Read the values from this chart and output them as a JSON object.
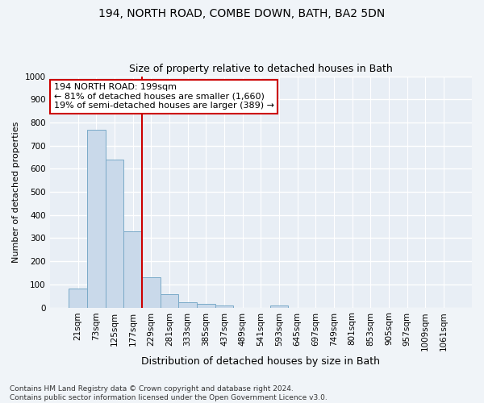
{
  "title1": "194, NORTH ROAD, COMBE DOWN, BATH, BA2 5DN",
  "title2": "Size of property relative to detached houses in Bath",
  "xlabel": "Distribution of detached houses by size in Bath",
  "ylabel": "Number of detached properties",
  "categories": [
    "21sqm",
    "73sqm",
    "125sqm",
    "177sqm",
    "229sqm",
    "281sqm",
    "333sqm",
    "385sqm",
    "437sqm",
    "489sqm",
    "541sqm",
    "593sqm",
    "645sqm",
    "697sqm",
    "749sqm",
    "801sqm",
    "853sqm",
    "905sqm",
    "957sqm",
    "1009sqm",
    "1061sqm"
  ],
  "values": [
    83,
    770,
    640,
    330,
    132,
    58,
    22,
    17,
    10,
    0,
    0,
    8,
    0,
    0,
    0,
    0,
    0,
    0,
    0,
    0,
    0
  ],
  "bar_color": "#c9d9ea",
  "bar_edge_color": "#7aaac8",
  "vline_x": 3.5,
  "vline_color": "#cc0000",
  "annotation_text": "194 NORTH ROAD: 199sqm\n← 81% of detached houses are smaller (1,660)\n19% of semi-detached houses are larger (389) →",
  "annotation_box_facecolor": "#ffffff",
  "annotation_box_edgecolor": "#cc0000",
  "ylim": [
    0,
    1000
  ],
  "yticks": [
    0,
    100,
    200,
    300,
    400,
    500,
    600,
    700,
    800,
    900,
    1000
  ],
  "footer": "Contains HM Land Registry data © Crown copyright and database right 2024.\nContains public sector information licensed under the Open Government Licence v3.0.",
  "bg_color": "#f0f4f8",
  "plot_bg_color": "#e8eef5",
  "grid_color": "#ffffff",
  "title1_fontsize": 10,
  "title2_fontsize": 9,
  "xlabel_fontsize": 9,
  "ylabel_fontsize": 8,
  "footer_fontsize": 6.5,
  "annotation_fontsize": 8,
  "tick_fontsize": 7.5
}
